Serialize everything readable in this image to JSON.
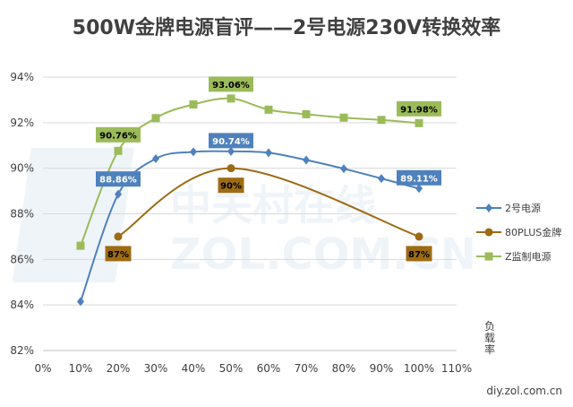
{
  "chart_data": {
    "type": "line",
    "title": "500W金牌电源盲评——2号电源230V转换效率",
    "xlabel": "负载率",
    "ylabel": "",
    "x_ticks": [
      "0%",
      "10%",
      "20%",
      "30%",
      "40%",
      "50%",
      "60%",
      "70%",
      "80%",
      "90%",
      "100%",
      "110%"
    ],
    "y_ticks": [
      "82%",
      "84%",
      "86%",
      "88%",
      "90%",
      "92%",
      "94%"
    ],
    "xlim": [
      0,
      110
    ],
    "ylim": [
      82,
      94
    ],
    "grid": "horizontal",
    "legend": "right",
    "series": [
      {
        "name": "2号电源",
        "color": "#4f81bd",
        "marker": "diamond",
        "x": [
          10,
          20,
          30,
          40,
          50,
          60,
          70,
          80,
          90,
          100
        ],
        "values": [
          84.15,
          88.86,
          90.42,
          90.72,
          90.74,
          90.68,
          90.36,
          89.98,
          89.55,
          89.11
        ],
        "labels": [
          {
            "x": 20,
            "text": "88.86%",
            "fill": "#4f81bd",
            "color": "#ffffff"
          },
          {
            "x": 50,
            "text": "90.74%",
            "fill": "#4f81bd",
            "color": "#ffffff"
          },
          {
            "x": 100,
            "text": "89.11%",
            "fill": "#4f81bd",
            "color": "#ffffff"
          }
        ]
      },
      {
        "name": "80PLUS金牌",
        "color": "#9c6b13",
        "marker": "circle",
        "x": [
          20,
          50,
          100
        ],
        "values": [
          87,
          90,
          87
        ],
        "labels": [
          {
            "x": 20,
            "text": "87%",
            "fill": "#9c6b13",
            "color": "#000000"
          },
          {
            "x": 50,
            "text": "90%",
            "fill": "#9c6b13",
            "color": "#000000"
          },
          {
            "x": 100,
            "text": "87%",
            "fill": "#9c6b13",
            "color": "#000000"
          }
        ]
      },
      {
        "name": "Z监制电源",
        "color": "#9bbb59",
        "marker": "square",
        "x": [
          10,
          20,
          30,
          40,
          50,
          60,
          70,
          80,
          90,
          100
        ],
        "values": [
          86.6,
          90.76,
          92.2,
          92.8,
          93.06,
          92.57,
          92.37,
          92.22,
          92.12,
          91.98
        ],
        "labels": [
          {
            "x": 20,
            "text": "90.76%",
            "fill": "#9bbb59",
            "color": "#000000"
          },
          {
            "x": 50,
            "text": "93.06%",
            "fill": "#9bbb59",
            "color": "#000000"
          },
          {
            "x": 100,
            "text": "91.98%",
            "fill": "#9bbb59",
            "color": "#000000"
          }
        ]
      }
    ],
    "watermark": "中关村在线 ZOL.COM.CN",
    "source": "diy.zol.com.cn"
  }
}
